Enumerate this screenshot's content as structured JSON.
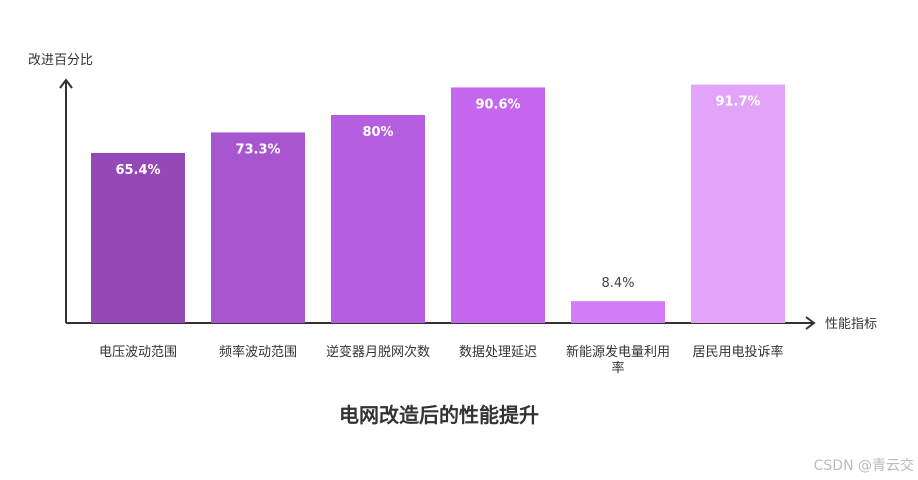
{
  "chart_data": {
    "type": "bar",
    "title": "电网改造后的性能提升",
    "y_label": "改进百分比",
    "x_label": "性能指标",
    "categories": [
      "电压波动范围",
      "频率波动范围",
      "逆变器月脱网次数",
      "数据处理延迟",
      "新能源发电量利用率",
      "居民用电投诉率"
    ],
    "values": [
      65.4,
      73.3,
      80,
      90.6,
      8.4,
      91.7
    ],
    "value_labels": [
      "65.4%",
      "73.3%",
      "80%",
      "90.6%",
      "8.4%",
      "91.7%"
    ],
    "colors": [
      "#9549b6",
      "#a856cf",
      "#b55ee0",
      "#c466ee",
      "#d37cf8",
      "#e2a4f8"
    ],
    "ylim": [
      0,
      100
    ]
  },
  "watermark": "CSDN @青云交"
}
